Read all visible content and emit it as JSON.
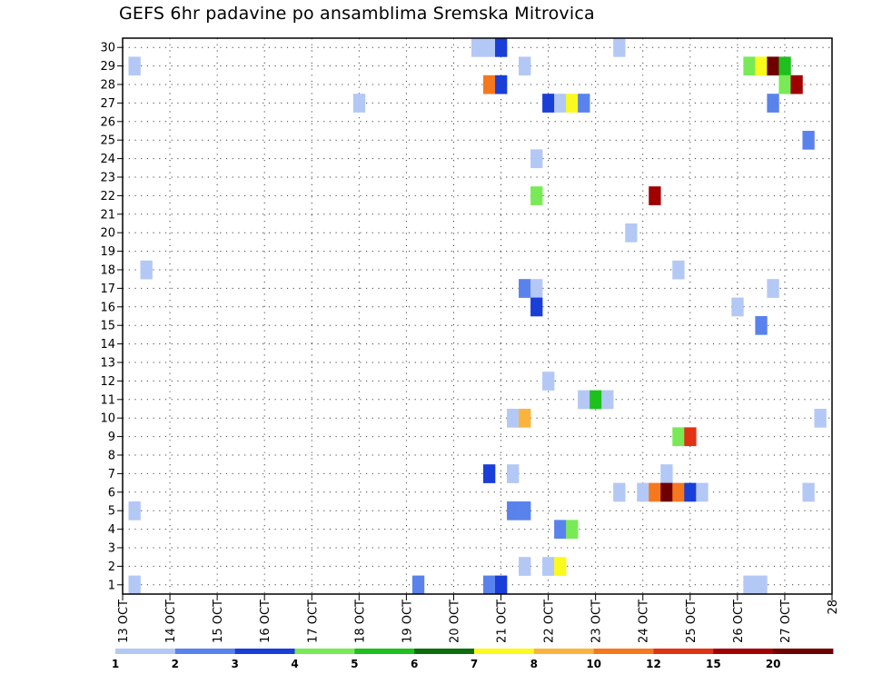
{
  "chart_data": {
    "type": "heatmap",
    "title": "GEFS 6hr padavine po ansamblima Sremska Mitrovica",
    "xlabel": "",
    "ylabel": "",
    "x_tick_labels": [
      "13 OCT",
      "14 OCT",
      "15 OCT",
      "16 OCT",
      "17 OCT",
      "18 OCT",
      "19 OCT",
      "20 OCT",
      "21 OCT",
      "22 OCT",
      "23 OCT",
      "24 OCT",
      "25 OCT",
      "26 OCT",
      "27 OCT",
      "28"
    ],
    "y_tick_labels": [
      "1",
      "2",
      "3",
      "4",
      "5",
      "6",
      "7",
      "8",
      "9",
      "10",
      "11",
      "12",
      "13",
      "14",
      "15",
      "16",
      "17",
      "18",
      "19",
      "20",
      "21",
      "22",
      "23",
      "24",
      "25",
      "26",
      "27",
      "28",
      "29",
      "30"
    ],
    "xlim": [
      13.0,
      28.0
    ],
    "ylim": [
      0.5,
      30.5
    ],
    "grid": true,
    "legend": {
      "placement": "bottom",
      "labels": [
        "1",
        "2",
        "3",
        "4",
        "5",
        "6",
        "7",
        "8",
        "10",
        "12",
        "15",
        "20"
      ],
      "colors": [
        "#b4c8f5",
        "#5a82ec",
        "#1a3ed8",
        "#78ea55",
        "#1ec01e",
        "#0c6e0c",
        "#fafa1e",
        "#fab43c",
        "#f5781e",
        "#e13214",
        "#a00000",
        "#6e0000"
      ]
    },
    "cells": [
      {
        "t": 13.25,
        "m": 29,
        "v": 1
      },
      {
        "t": 13.5,
        "m": 18,
        "v": 1
      },
      {
        "t": 13.25,
        "m": 5,
        "v": 1
      },
      {
        "t": 13.25,
        "m": 1,
        "v": 1
      },
      {
        "t": 18.0,
        "m": 27,
        "v": 1
      },
      {
        "t": 19.25,
        "m": 1,
        "v": 2
      },
      {
        "t": 20.5,
        "m": 30,
        "v": 1
      },
      {
        "t": 20.75,
        "m": 30,
        "v": 1
      },
      {
        "t": 21.0,
        "m": 30,
        "v": 3
      },
      {
        "t": 21.5,
        "m": 29,
        "v": 1
      },
      {
        "t": 20.75,
        "m": 28,
        "v": 10
      },
      {
        "t": 21.0,
        "m": 28,
        "v": 3
      },
      {
        "t": 22.0,
        "m": 27,
        "v": 3
      },
      {
        "t": 22.25,
        "m": 27,
        "v": 1
      },
      {
        "t": 22.5,
        "m": 27,
        "v": 7
      },
      {
        "t": 22.75,
        "m": 27,
        "v": 2
      },
      {
        "t": 21.75,
        "m": 24,
        "v": 1
      },
      {
        "t": 21.75,
        "m": 22,
        "v": 4
      },
      {
        "t": 21.5,
        "m": 17,
        "v": 2
      },
      {
        "t": 21.75,
        "m": 17,
        "v": 1
      },
      {
        "t": 21.75,
        "m": 16,
        "v": 3
      },
      {
        "t": 22.0,
        "m": 12,
        "v": 1
      },
      {
        "t": 22.75,
        "m": 11,
        "v": 1
      },
      {
        "t": 23.0,
        "m": 11,
        "v": 5
      },
      {
        "t": 23.25,
        "m": 11,
        "v": 1
      },
      {
        "t": 21.25,
        "m": 10,
        "v": 1
      },
      {
        "t": 21.5,
        "m": 10,
        "v": 8
      },
      {
        "t": 20.75,
        "m": 7,
        "v": 3
      },
      {
        "t": 21.25,
        "m": 7,
        "v": 1
      },
      {
        "t": 21.25,
        "m": 5,
        "v": 2
      },
      {
        "t": 21.5,
        "m": 5,
        "v": 2
      },
      {
        "t": 22.25,
        "m": 4,
        "v": 2
      },
      {
        "t": 22.5,
        "m": 4,
        "v": 4
      },
      {
        "t": 21.5,
        "m": 2,
        "v": 1
      },
      {
        "t": 22.0,
        "m": 2,
        "v": 1
      },
      {
        "t": 22.25,
        "m": 2,
        "v": 7
      },
      {
        "t": 20.75,
        "m": 1,
        "v": 2
      },
      {
        "t": 21.0,
        "m": 1,
        "v": 3
      },
      {
        "t": 23.5,
        "m": 30,
        "v": 1
      },
      {
        "t": 23.75,
        "m": 20,
        "v": 1
      },
      {
        "t": 24.25,
        "m": 22,
        "v": 15
      },
      {
        "t": 24.75,
        "m": 18,
        "v": 1
      },
      {
        "t": 24.75,
        "m": 9,
        "v": 4
      },
      {
        "t": 25.0,
        "m": 9,
        "v": 12
      },
      {
        "t": 24.5,
        "m": 7,
        "v": 1
      },
      {
        "t": 23.5,
        "m": 6,
        "v": 1
      },
      {
        "t": 24.0,
        "m": 6,
        "v": 1
      },
      {
        "t": 24.25,
        "m": 6,
        "v": 10
      },
      {
        "t": 24.5,
        "m": 6,
        "v": 20
      },
      {
        "t": 24.75,
        "m": 6,
        "v": 10
      },
      {
        "t": 25.0,
        "m": 6,
        "v": 3
      },
      {
        "t": 25.25,
        "m": 6,
        "v": 1
      },
      {
        "t": 26.25,
        "m": 29,
        "v": 4
      },
      {
        "t": 26.5,
        "m": 29,
        "v": 7
      },
      {
        "t": 26.75,
        "m": 29,
        "v": 20
      },
      {
        "t": 27.0,
        "m": 29,
        "v": 5
      },
      {
        "t": 27.0,
        "m": 28,
        "v": 4
      },
      {
        "t": 27.25,
        "m": 28,
        "v": 15
      },
      {
        "t": 26.75,
        "m": 27,
        "v": 2
      },
      {
        "t": 27.5,
        "m": 25,
        "v": 2
      },
      {
        "t": 26.75,
        "m": 17,
        "v": 1
      },
      {
        "t": 26.0,
        "m": 16,
        "v": 1
      },
      {
        "t": 26.5,
        "m": 15,
        "v": 2
      },
      {
        "t": 27.75,
        "m": 10,
        "v": 1
      },
      {
        "t": 27.5,
        "m": 6,
        "v": 1
      },
      {
        "t": 26.25,
        "m": 1,
        "v": 1
      },
      {
        "t": 26.5,
        "m": 1,
        "v": 1
      }
    ]
  }
}
